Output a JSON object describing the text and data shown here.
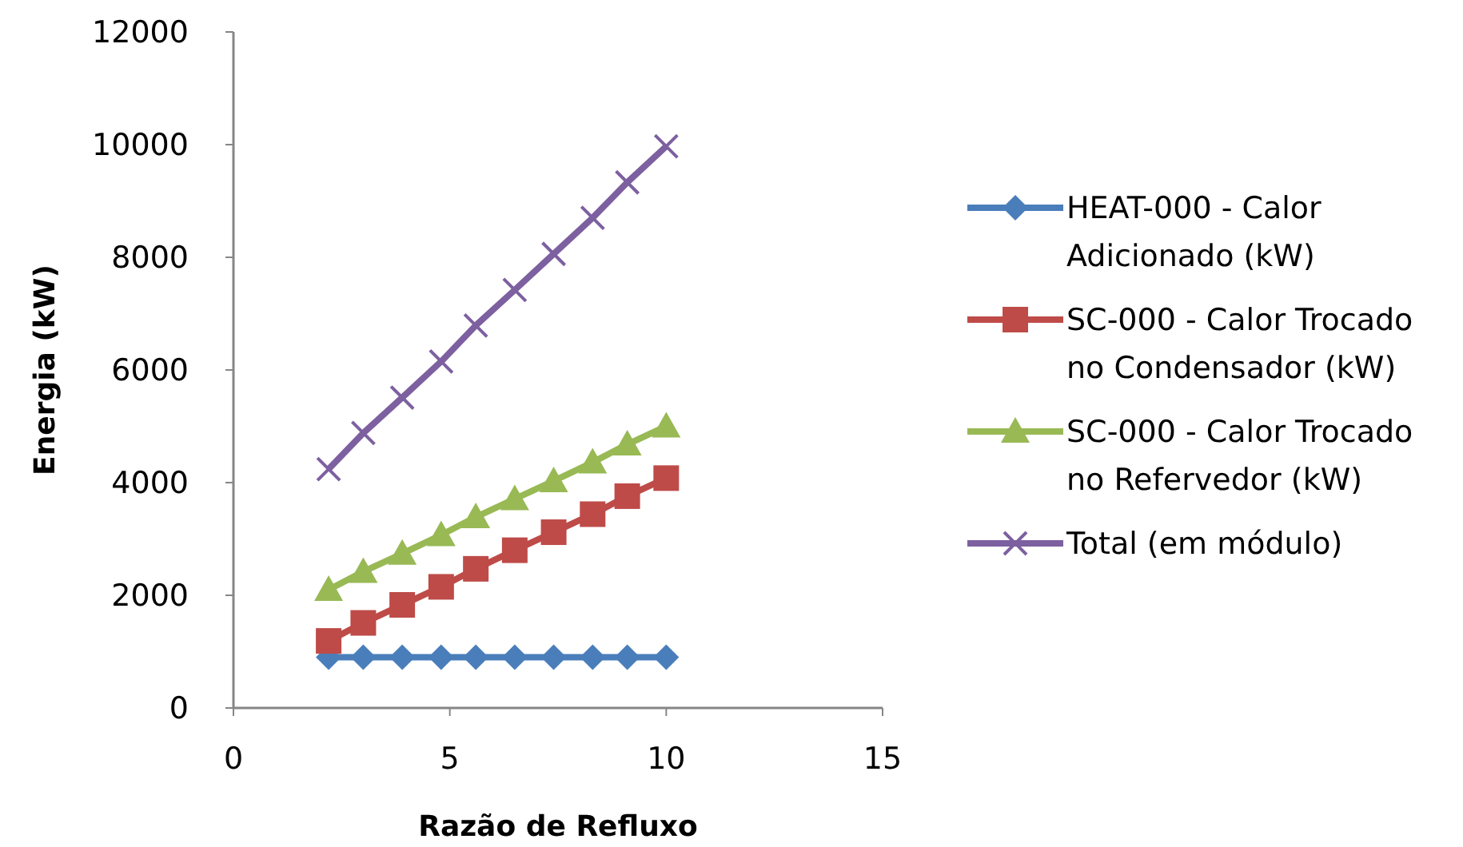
{
  "chart_data": {
    "type": "line",
    "xlabel": "Razão de Refluxo",
    "ylabel": "Energia (kW)",
    "x": [
      2.2,
      3.0,
      3.9,
      4.8,
      5.6,
      6.5,
      7.4,
      8.3,
      9.1,
      10
    ],
    "xlim": [
      0,
      15
    ],
    "xticks": [
      0,
      5,
      10,
      15
    ],
    "ylim": [
      0,
      12000
    ],
    "yticks": [
      0,
      2000,
      4000,
      6000,
      8000,
      10000,
      12000
    ],
    "grid": false,
    "legend": "right",
    "line_style": "solid",
    "series": [
      {
        "name": "HEAT-000 - Calor Adicionado (kW)",
        "color": "#4a7ebb",
        "marker": "diamond",
        "values": [
          900,
          900,
          900,
          900,
          900,
          900,
          900,
          900,
          900,
          900
        ]
      },
      {
        "name": "SC-000 - Calor Trocado no Condensador (kW)",
        "color": "#be4b48",
        "marker": "square",
        "values": [
          1190,
          1510,
          1830,
          2150,
          2470,
          2800,
          3120,
          3440,
          3760,
          4080
        ]
      },
      {
        "name": "SC-000 - Calor Trocado no Refervedor (kW)",
        "color": "#98b954",
        "marker": "triangle",
        "values": [
          2100,
          2420,
          2740,
          3070,
          3390,
          3710,
          4030,
          4360,
          4680,
          5000
        ]
      },
      {
        "name": "Total (em módulo)",
        "color": "#7d60a0",
        "marker": "cross",
        "values": [
          4240,
          4880,
          5510,
          6150,
          6790,
          7420,
          8060,
          8700,
          9330,
          9970
        ]
      }
    ]
  }
}
